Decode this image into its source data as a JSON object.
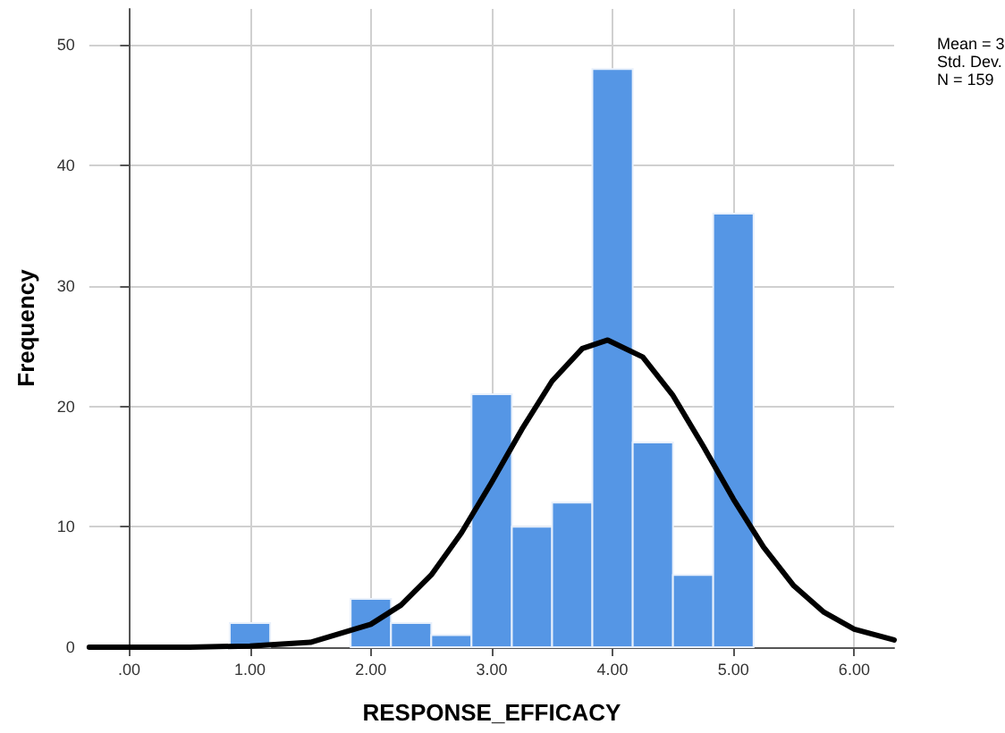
{
  "chart_data": {
    "type": "histogram",
    "xlabel": "RESPONSE_EFFICACY",
    "ylabel": "Frequency",
    "bins": [
      0.833,
      1.167,
      1.5,
      1.833,
      2.167,
      2.5,
      2.833,
      3.167,
      3.5,
      3.833,
      4.167,
      4.5,
      4.833,
      5.167
    ],
    "values": [
      2,
      0,
      0,
      4,
      2,
      1,
      21,
      10,
      12,
      48,
      17,
      6,
      36
    ],
    "color": "#5596e5",
    "series": [
      {
        "type": "line",
        "color": "#000000",
        "x": [
          -0.33,
          0.5,
          1.0,
          1.5,
          2.0,
          2.25,
          2.5,
          2.75,
          3.0,
          3.25,
          3.5,
          3.75,
          3.96,
          4.25,
          4.5,
          4.75,
          5.0,
          5.25,
          5.5,
          5.75,
          6.0,
          6.33
        ],
        "values": [
          0,
          0,
          0.1,
          0.4,
          1.9,
          3.5,
          6.0,
          9.5,
          13.7,
          18.1,
          22.1,
          24.8,
          25.5,
          24.1,
          20.9,
          16.7,
          12.3,
          8.3,
          5.1,
          2.9,
          1.5,
          0.6
        ]
      }
    ],
    "xlim": [
      -0.33,
      6.33
    ],
    "xticks": [
      {
        "value": 0,
        "label": ".00"
      },
      {
        "value": 1,
        "label": "1.00"
      },
      {
        "value": 2,
        "label": "2.00"
      },
      {
        "value": 3,
        "label": "3.00"
      },
      {
        "value": 4,
        "label": "4.00"
      },
      {
        "value": 5,
        "label": "5.00"
      },
      {
        "value": 6,
        "label": "6.00"
      }
    ],
    "ylim": [
      0,
      53
    ],
    "yticks": [
      0,
      10,
      20,
      30,
      40,
      50
    ],
    "grid": true,
    "annotations": [
      "Mean = 3",
      "Std. Dev.",
      "N = 159"
    ]
  }
}
